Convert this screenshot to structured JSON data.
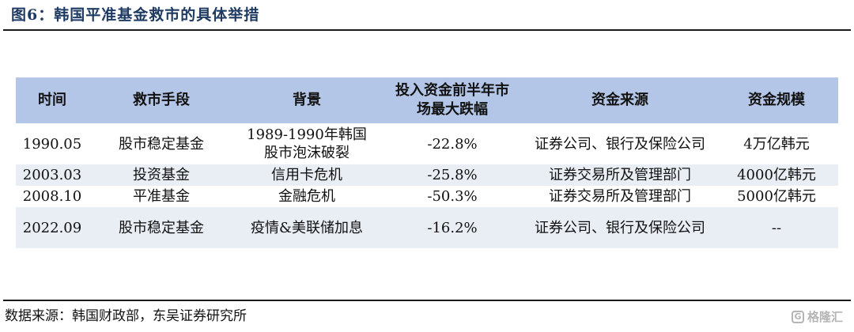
{
  "title": "图6：韩国平准基金救市的具体举措",
  "table": {
    "headers": [
      "时间",
      "救市手段",
      "背景",
      "投入资金前半年市场最大跌幅",
      "资金来源",
      "资金规模"
    ],
    "rows": [
      {
        "time": "1990.05",
        "method": "股市稳定基金",
        "background": "1989-1990年韩国股市泡沫破裂",
        "drop": "-22.8%",
        "source": "证券公司、银行及保险公司",
        "scale": "4万亿韩元"
      },
      {
        "time": "2003.03",
        "method": "投资基金",
        "background": "信用卡危机",
        "drop": "-25.8%",
        "source": "证券交易所及管理部门",
        "scale": "4000亿韩元"
      },
      {
        "time": "2008.10",
        "method": "平准基金",
        "background": "金融危机",
        "drop": "-50.3%",
        "source": "证券交易所及管理部门",
        "scale": "5000亿韩元"
      },
      {
        "time": "2022.09",
        "method": "股市稳定基金",
        "background": "疫情&美联储加息",
        "drop": "-16.2%",
        "source": "证券公司、银行及保险公司",
        "scale": "--"
      }
    ]
  },
  "source_note": "数据来源：韩国财政部，东吴证券研究所",
  "watermark": {
    "text": "格隆汇",
    "icon": "watermark-logo-icon"
  },
  "colors": {
    "title": "#1f3b63",
    "header_bg": "#b4c6e7",
    "row_shade": "#e9edf4"
  }
}
